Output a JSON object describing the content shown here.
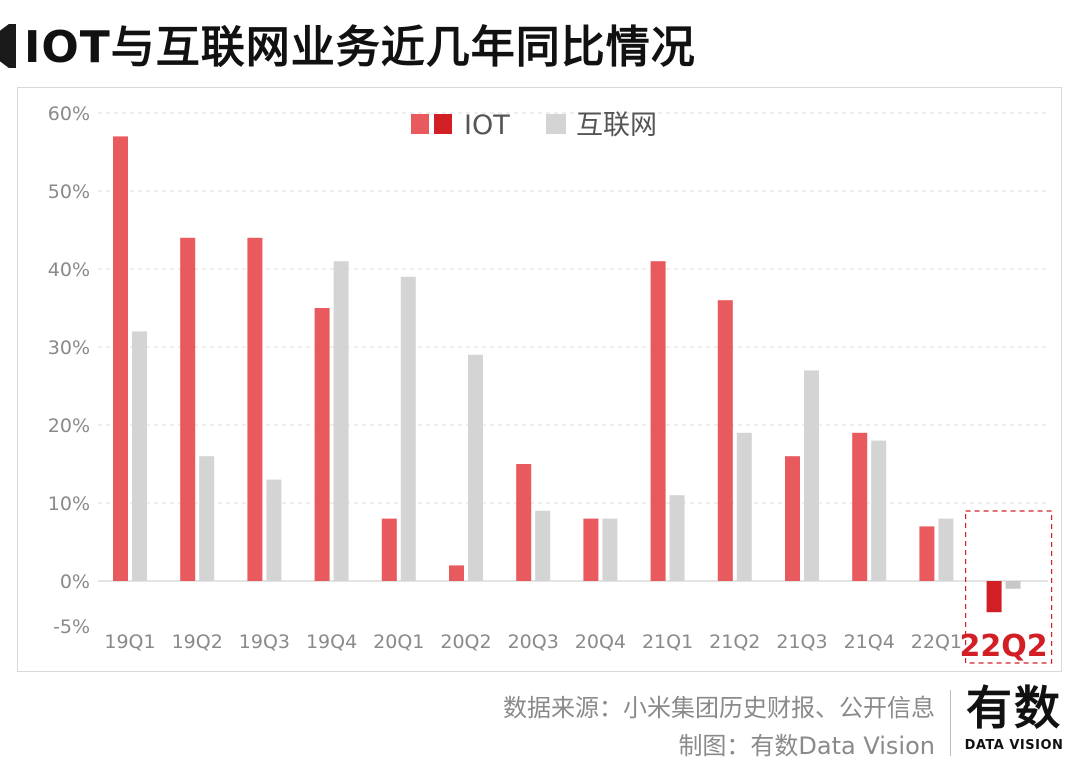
{
  "title": "IOT与互联网业务近几年同比情况",
  "footer": {
    "source": "数据来源：小米集团历史财报、公开信息",
    "maker": "制图：有数Data Vision"
  },
  "logo": {
    "main": "有数",
    "sub": "DATA VISION"
  },
  "chart_data": {
    "type": "bar",
    "title": "",
    "xlabel": "",
    "ylabel": "",
    "categories": [
      "19Q1",
      "19Q2",
      "19Q3",
      "19Q4",
      "20Q1",
      "20Q2",
      "20Q3",
      "20Q4",
      "21Q1",
      "21Q2",
      "21Q3",
      "21Q4",
      "22Q1",
      "22Q2"
    ],
    "series": [
      {
        "name": "IOT",
        "values": [
          57,
          44,
          44,
          35,
          8,
          2,
          15,
          8,
          41,
          36,
          16,
          19,
          7,
          -4
        ],
        "color": "#e85a5e",
        "highlight_color": "#d21e25"
      },
      {
        "name": "互联网",
        "values": [
          32,
          16,
          13,
          41,
          39,
          29,
          9,
          8,
          11,
          19,
          27,
          18,
          8,
          -1
        ],
        "color": "#d4d4d4"
      }
    ],
    "yticks": [
      "-5%",
      "0%",
      "10%",
      "20%",
      "30%",
      "40%",
      "50%",
      "60%"
    ],
    "ytick_values": [
      -5,
      0,
      10,
      20,
      30,
      40,
      50,
      60
    ],
    "ylim": [
      -5,
      60
    ],
    "grid": true,
    "legend_position": "top-center",
    "highlight_category": "22Q2",
    "highlight_color": "#d21e25"
  }
}
